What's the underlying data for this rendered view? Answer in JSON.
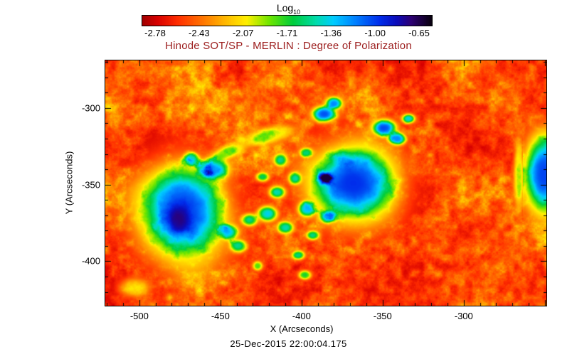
{
  "colorbar": {
    "label_main": "Log",
    "label_sub": "10",
    "ticks": [
      "-2.78",
      "-2.43",
      "-2.07",
      "-1.71",
      "-1.36",
      "-1.00",
      "-0.65"
    ]
  },
  "colors": {
    "title_text": "#9b1c1c",
    "axis_text": "#000000",
    "frame": "#000000"
  },
  "chart_data": {
    "type": "heatmap",
    "title": "Hinode SOT/SP - MERLIN : Degree of Polarization",
    "xlabel": "X (Arcseconds)",
    "ylabel": "Y (Arcseconds)",
    "timestamp": "25-Dec-2015 22:00:04.175",
    "x_range": [
      -521,
      -249
    ],
    "y_range": [
      -429,
      -269
    ],
    "xticks": [
      -500,
      -450,
      -400,
      -350,
      -300
    ],
    "yticks": [
      -400,
      -350,
      -300
    ],
    "minor_tick_step": 10,
    "major_tick_step": 50,
    "colorbar_ticks": [
      -2.78,
      -2.43,
      -2.07,
      -1.71,
      -1.36,
      -1.0,
      -0.65
    ],
    "value_label": "Log10 Degree of Polarization",
    "colormap_stops": [
      [
        0.0,
        160,
        0,
        0
      ],
      [
        0.05,
        215,
        0,
        0
      ],
      [
        0.12,
        255,
        45,
        0
      ],
      [
        0.2,
        255,
        110,
        0
      ],
      [
        0.28,
        255,
        180,
        0
      ],
      [
        0.36,
        255,
        240,
        0
      ],
      [
        0.44,
        110,
        230,
        0
      ],
      [
        0.52,
        0,
        205,
        60
      ],
      [
        0.6,
        0,
        220,
        170
      ],
      [
        0.66,
        0,
        205,
        255
      ],
      [
        0.74,
        0,
        125,
        255
      ],
      [
        0.82,
        0,
        45,
        235
      ],
      [
        0.88,
        12,
        12,
        185
      ],
      [
        0.93,
        45,
        0,
        115
      ],
      [
        1.0,
        8,
        0,
        14
      ]
    ],
    "background_field": {
      "base": 0.04,
      "amp": 0.4,
      "pow": 1.7,
      "noise_scale": 0.09,
      "large_scale": 0.016
    },
    "sunspots": [
      [
        -473,
        -368,
        25,
        30,
        8,
        0.8
      ],
      [
        -477,
        -374,
        9,
        11,
        0,
        0.13
      ],
      [
        -454,
        -340,
        9,
        7,
        0,
        0.62
      ],
      [
        -468,
        -333,
        5,
        4,
        0,
        0.45
      ],
      [
        -445,
        -381,
        6,
        5,
        0,
        0.55
      ],
      [
        -439,
        -390,
        5,
        4,
        0,
        0.5
      ],
      [
        -432,
        -373,
        5,
        4,
        0,
        0.5
      ],
      [
        -421,
        -369,
        6,
        5,
        0,
        0.6
      ],
      [
        -415,
        -355,
        5,
        4,
        0,
        0.55
      ],
      [
        -410,
        -378,
        5,
        4,
        0,
        0.55
      ],
      [
        -404,
        -346,
        4,
        4,
        0,
        0.5
      ],
      [
        -397,
        -366,
        5,
        5,
        0,
        0.6
      ],
      [
        -393,
        -383,
        4,
        3,
        0,
        0.5
      ],
      [
        -402,
        -396,
        4,
        3,
        0,
        0.5
      ],
      [
        -413,
        -334,
        4,
        4,
        0,
        0.5
      ],
      [
        -397,
        -329,
        4,
        3,
        0,
        0.45
      ],
      [
        -386,
        -346,
        5,
        4,
        0,
        0.55
      ],
      [
        -384,
        -371,
        5,
        4,
        0,
        0.55
      ],
      [
        -424,
        -345,
        4,
        3,
        0,
        0.45
      ],
      [
        -368,
        -349,
        26,
        23,
        -12,
        0.82
      ],
      [
        -374,
        -333,
        8,
        6,
        0,
        0.13
      ],
      [
        -386,
        -304,
        7,
        5,
        0,
        0.78
      ],
      [
        -380,
        -297,
        5,
        4,
        0,
        0.7
      ],
      [
        -349,
        -313,
        7,
        5,
        0,
        0.78
      ],
      [
        -341,
        -320,
        5,
        4,
        0,
        0.7
      ],
      [
        -334,
        -307,
        4,
        3,
        0,
        0.6
      ],
      [
        -446,
        -329,
        10,
        4,
        20,
        0.3
      ],
      [
        -420,
        -318,
        14,
        5,
        15,
        0.28
      ],
      [
        -250,
        -343,
        12,
        24,
        0,
        0.8,
        -263.5
      ],
      [
        -266,
        -343,
        3,
        22,
        0,
        0.3
      ],
      [
        -503,
        -417,
        9,
        6,
        0,
        0.25
      ],
      [
        -398,
        -409,
        4,
        3,
        0,
        0.45
      ],
      [
        -427,
        -403,
        3,
        3,
        0,
        0.4
      ]
    ]
  }
}
